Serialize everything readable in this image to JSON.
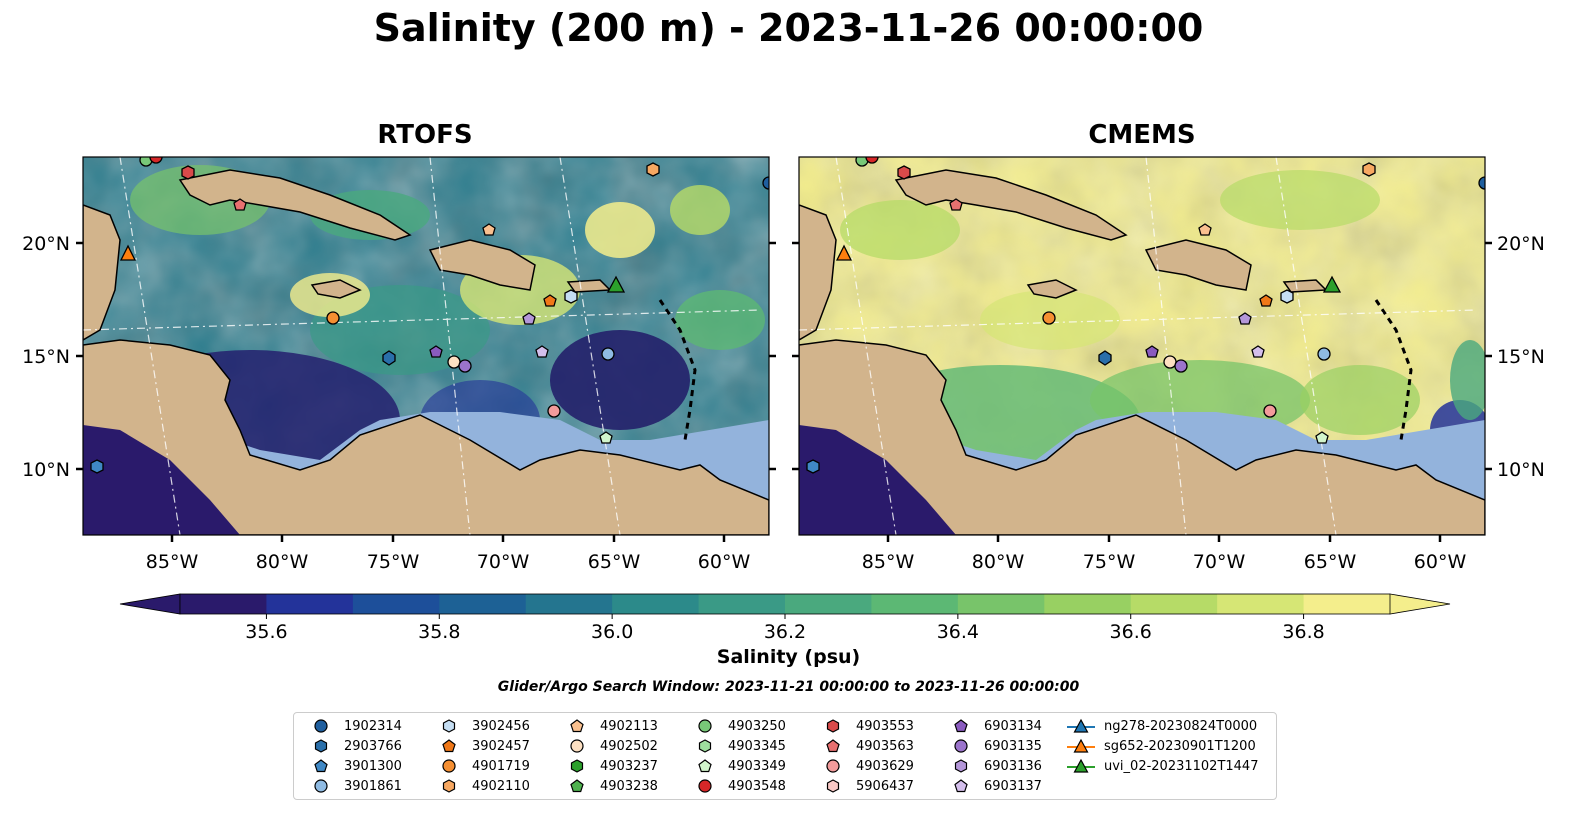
{
  "title": "Salinity (200 m) - 2023-11-26 00:00:00",
  "panels": [
    {
      "title": "RTOFS"
    },
    {
      "title": "CMEMS"
    }
  ],
  "lat_labels": [
    "20°N",
    "15°N",
    "10°N"
  ],
  "lon_labels": [
    "85°W",
    "80°W",
    "75°W",
    "70°W",
    "65°W",
    "60°W"
  ],
  "colorbar": {
    "label": "Salinity (psu)",
    "ticks": [
      "35.6",
      "35.8",
      "36.0",
      "36.2",
      "36.4",
      "36.6",
      "36.8"
    ],
    "min": 35.5,
    "max": 36.9,
    "extend": "both",
    "colors": [
      "#2a1a6b",
      "#23339a",
      "#1d4f9a",
      "#1d6195",
      "#24758f",
      "#2c8a8a",
      "#3a9a86",
      "#4aa97e",
      "#5cb874",
      "#78c46a",
      "#98d062",
      "#b6db67",
      "#d6e675",
      "#f4ee8c"
    ]
  },
  "search_window": "Glider/Argo Search Window: 2023-11-21 00:00:00 to 2023-11-26 00:00:00",
  "legend": [
    {
      "label": "1902314",
      "marker": "circle",
      "color": "#1f5f9f"
    },
    {
      "label": "2903766",
      "marker": "hexagon",
      "color": "#2a6faa"
    },
    {
      "label": "3901300",
      "marker": "pentagon",
      "color": "#3f88c5"
    },
    {
      "label": "3901861",
      "marker": "circle",
      "color": "#8fbbe3"
    },
    {
      "label": "3902456",
      "marker": "hexagon",
      "color": "#c5def3"
    },
    {
      "label": "3902457",
      "marker": "pentagon",
      "color": "#f07818"
    },
    {
      "label": "4901719",
      "marker": "circle",
      "color": "#f58f32"
    },
    {
      "label": "4902110",
      "marker": "hexagon",
      "color": "#f7a862"
    },
    {
      "label": "4902113",
      "marker": "pentagon",
      "color": "#fac08f"
    },
    {
      "label": "4902502",
      "marker": "circle",
      "color": "#fde0c2"
    },
    {
      "label": "4903237",
      "marker": "hexagon",
      "color": "#2ca02c"
    },
    {
      "label": "4903238",
      "marker": "pentagon",
      "color": "#4fb24f"
    },
    {
      "label": "4903250",
      "marker": "circle",
      "color": "#78c878"
    },
    {
      "label": "4903345",
      "marker": "hexagon",
      "color": "#9ede9e"
    },
    {
      "label": "4903349",
      "marker": "pentagon",
      "color": "#d2f5cc"
    },
    {
      "label": "4903548",
      "marker": "circle",
      "color": "#d62728"
    },
    {
      "label": "4903553",
      "marker": "hexagon",
      "color": "#d94a4a"
    },
    {
      "label": "4903563",
      "marker": "pentagon",
      "color": "#e87070"
    },
    {
      "label": "4903629",
      "marker": "circle",
      "color": "#f29b9b"
    },
    {
      "label": "5906437",
      "marker": "hexagon",
      "color": "#f9c9c6"
    },
    {
      "label": "6903134",
      "marker": "pentagon",
      "color": "#8a5bbf"
    },
    {
      "label": "6903135",
      "marker": "circle",
      "color": "#9b74cc"
    },
    {
      "label": "6903136",
      "marker": "hexagon",
      "color": "#b497d9"
    },
    {
      "label": "6903137",
      "marker": "pentagon",
      "color": "#d4bfec"
    },
    {
      "label": "ng278-20230824T0000",
      "marker": "triangle-line",
      "color": "#1f77b4"
    },
    {
      "label": "sg652-20230901T1200",
      "marker": "triangle-line",
      "color": "#ff7f0e"
    },
    {
      "label": "uvi_02-20231102T1447",
      "marker": "triangle-line",
      "color": "#2ca02c"
    }
  ]
}
